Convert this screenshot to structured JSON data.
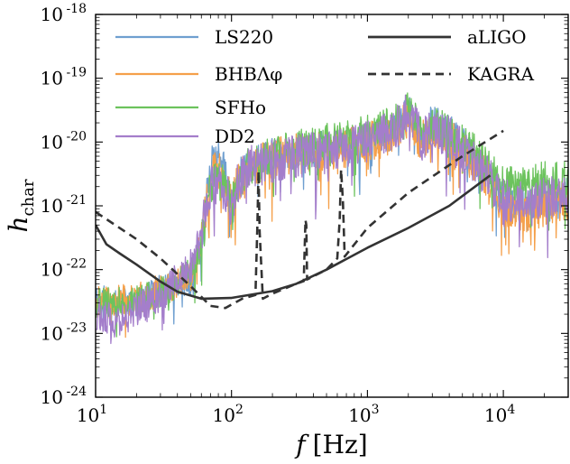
{
  "chart_data": {
    "type": "line",
    "xscale": "log",
    "yscale": "log",
    "xlim": [
      10,
      30000
    ],
    "ylim": [
      1e-24,
      1e-18
    ],
    "xlabel_main": "f",
    "xlabel_unit": "[Hz]",
    "ylabel_main": "h",
    "ylabel_sub": "char",
    "x_tick_labels": [
      {
        "value": 10,
        "base": "10",
        "exp": "1"
      },
      {
        "value": 100,
        "base": "10",
        "exp": "2"
      },
      {
        "value": 1000,
        "base": "10",
        "exp": "3"
      },
      {
        "value": 10000,
        "base": "10",
        "exp": "4"
      }
    ],
    "y_tick_labels": [
      {
        "value": 1e-24,
        "base": "10",
        "exp": "-24"
      },
      {
        "value": 1e-23,
        "base": "10",
        "exp": "-23"
      },
      {
        "value": 1e-22,
        "base": "10",
        "exp": "-22"
      },
      {
        "value": 1e-21,
        "base": "10",
        "exp": "-21"
      },
      {
        "value": 1e-20,
        "base": "10",
        "exp": "-20"
      },
      {
        "value": 1e-19,
        "base": "10",
        "exp": "-19"
      },
      {
        "value": 1e-18,
        "base": "10",
        "exp": "-18"
      }
    ],
    "legend_placement": "top",
    "series": [
      {
        "name": "LS220",
        "color": "#6f9fd0",
        "style": "solid",
        "noise_seed": 11,
        "noise_amp": 0.28,
        "points": [
          [
            10,
            3.5e-23
          ],
          [
            20,
            3e-23
          ],
          [
            30,
            5e-23
          ],
          [
            40,
            6e-23
          ],
          [
            50,
            7e-23
          ],
          [
            55,
            1.2e-22
          ],
          [
            60,
            2.5e-22
          ],
          [
            65,
            1.2e-21
          ],
          [
            70,
            4.5e-21
          ],
          [
            80,
            5.6e-21
          ],
          [
            90,
            3.5e-21
          ],
          [
            100,
            1e-21
          ],
          [
            110,
            2.5e-21
          ],
          [
            130,
            4.5e-21
          ],
          [
            160,
            5e-21
          ],
          [
            200,
            6e-21
          ],
          [
            300,
            7e-21
          ],
          [
            500,
            8e-21
          ],
          [
            800,
            9e-21
          ],
          [
            1200,
            1.2e-20
          ],
          [
            1600,
            1.5e-20
          ],
          [
            2000,
            3e-20
          ],
          [
            2500,
            1.2e-20
          ],
          [
            3000,
            2e-20
          ],
          [
            4000,
            1.5e-20
          ],
          [
            6000,
            6e-21
          ],
          [
            8000,
            3.2e-21
          ],
          [
            10000,
            1.3e-21
          ],
          [
            15000,
            1e-21
          ],
          [
            20000,
            1.2e-21
          ],
          [
            30000,
            1.5e-21
          ]
        ]
      },
      {
        "name": "BHBΛφ",
        "color": "#f5a04a",
        "style": "solid",
        "noise_seed": 23,
        "noise_amp": 0.32,
        "points": [
          [
            10,
            3e-23
          ],
          [
            20,
            3.5e-23
          ],
          [
            30,
            5e-23
          ],
          [
            40,
            6e-23
          ],
          [
            50,
            8e-23
          ],
          [
            55,
            1.5e-22
          ],
          [
            60,
            2.5e-22
          ],
          [
            65,
            1e-21
          ],
          [
            70,
            3e-21
          ],
          [
            80,
            3.5e-21
          ],
          [
            90,
            2.5e-21
          ],
          [
            100,
            1e-21
          ],
          [
            110,
            2.2e-21
          ],
          [
            130,
            4e-21
          ],
          [
            160,
            4.5e-21
          ],
          [
            200,
            5.5e-21
          ],
          [
            300,
            6.5e-21
          ],
          [
            500,
            7.5e-21
          ],
          [
            800,
            8.5e-21
          ],
          [
            1200,
            1.1e-20
          ],
          [
            1600,
            1.4e-20
          ],
          [
            2000,
            2.5e-20
          ],
          [
            2500,
            1e-20
          ],
          [
            3000,
            1.8e-20
          ],
          [
            4000,
            1.2e-20
          ],
          [
            6000,
            5e-21
          ],
          [
            8000,
            2.5e-21
          ],
          [
            10000,
            1e-21
          ],
          [
            15000,
            8e-22
          ],
          [
            20000,
            1e-21
          ],
          [
            30000,
            1.3e-21
          ]
        ]
      },
      {
        "name": "SFHo",
        "color": "#6cc35d",
        "style": "solid",
        "noise_seed": 37,
        "noise_amp": 0.3,
        "points": [
          [
            10,
            3e-23
          ],
          [
            20,
            3.2e-23
          ],
          [
            30,
            4.5e-23
          ],
          [
            40,
            6e-23
          ],
          [
            50,
            9e-23
          ],
          [
            55,
            1.4e-22
          ],
          [
            60,
            2.5e-22
          ],
          [
            65,
            8e-22
          ],
          [
            70,
            2.2e-21
          ],
          [
            80,
            2.5e-21
          ],
          [
            90,
            2.2e-21
          ],
          [
            100,
            1.1e-21
          ],
          [
            110,
            2.3e-21
          ],
          [
            130,
            4e-21
          ],
          [
            160,
            5e-21
          ],
          [
            200,
            6e-21
          ],
          [
            300,
            8e-21
          ],
          [
            500,
            1e-20
          ],
          [
            800,
            1.2e-20
          ],
          [
            1200,
            1.5e-20
          ],
          [
            1600,
            2e-20
          ],
          [
            2000,
            3.5e-20
          ],
          [
            2500,
            1.3e-20
          ],
          [
            3000,
            2e-20
          ],
          [
            4000,
            1.5e-20
          ],
          [
            6000,
            7e-21
          ],
          [
            8000,
            3.5e-21
          ],
          [
            10000,
            2e-21
          ],
          [
            15000,
            2.2e-21
          ],
          [
            20000,
            2.5e-21
          ],
          [
            30000,
            2.6e-21
          ]
        ]
      },
      {
        "name": "DD2",
        "color": "#a47ecb",
        "style": "solid",
        "noise_seed": 53,
        "noise_amp": 0.34,
        "points": [
          [
            10,
            2e-23
          ],
          [
            15,
            1.5e-23
          ],
          [
            20,
            2.5e-23
          ],
          [
            30,
            4e-23
          ],
          [
            40,
            7e-23
          ],
          [
            50,
            1.1e-22
          ],
          [
            55,
            2e-22
          ],
          [
            60,
            4e-22
          ],
          [
            65,
            1e-21
          ],
          [
            70,
            2e-21
          ],
          [
            80,
            2.2e-21
          ],
          [
            90,
            1.8e-21
          ],
          [
            100,
            1e-21
          ],
          [
            110,
            2.2e-21
          ],
          [
            130,
            4e-21
          ],
          [
            160,
            4.5e-21
          ],
          [
            200,
            5e-21
          ],
          [
            300,
            6e-21
          ],
          [
            500,
            7e-21
          ],
          [
            800,
            8.5e-21
          ],
          [
            1200,
            1.1e-20
          ],
          [
            1600,
            1.6e-20
          ],
          [
            2000,
            3e-20
          ],
          [
            2500,
            1.1e-20
          ],
          [
            3000,
            1.6e-20
          ],
          [
            4000,
            1.2e-20
          ],
          [
            6000,
            5e-21
          ],
          [
            8000,
            2.5e-21
          ],
          [
            10000,
            1.2e-21
          ],
          [
            15000,
            1.2e-21
          ],
          [
            20000,
            1.4e-21
          ],
          [
            30000,
            1.5e-21
          ]
        ]
      },
      {
        "name": "aLIGO",
        "color": "#333333",
        "style": "solid",
        "points": [
          [
            10,
            5e-22
          ],
          [
            12,
            2.5e-22
          ],
          [
            15,
            1.8e-22
          ],
          [
            20,
            1.2e-22
          ],
          [
            30,
            6.5e-23
          ],
          [
            40,
            4.5e-23
          ],
          [
            60,
            3.5e-23
          ],
          [
            100,
            3.6e-23
          ],
          [
            200,
            4.6e-23
          ],
          [
            300,
            6e-23
          ],
          [
            500,
            1e-22
          ],
          [
            1000,
            2.2e-22
          ],
          [
            2000,
            4.5e-22
          ],
          [
            4000,
            1e-21
          ],
          [
            8000,
            3e-21
          ]
        ]
      },
      {
        "name": "KAGRA",
        "color": "#333333",
        "style": "dashed",
        "points": [
          [
            10,
            8e-22
          ],
          [
            20,
            3e-22
          ],
          [
            30,
            1.5e-22
          ],
          [
            50,
            5.5e-23
          ],
          [
            70,
            2.7e-23
          ],
          [
            90,
            2.5e-23
          ],
          [
            120,
            3.5e-23
          ],
          [
            150,
            4e-23
          ],
          [
            155,
            5e-22
          ],
          [
            158,
            3.5e-21
          ],
          [
            161,
            4e-22
          ],
          [
            170,
            3.5e-23
          ],
          [
            200,
            4.2e-23
          ],
          [
            300,
            6e-23
          ],
          [
            340,
            6.6e-23
          ],
          [
            350,
            6e-22
          ],
          [
            355,
            5e-22
          ],
          [
            360,
            7e-23
          ],
          [
            500,
            1e-22
          ],
          [
            600,
            1.5e-22
          ],
          [
            625,
            6e-22
          ],
          [
            640,
            3.7e-21
          ],
          [
            660,
            1.2e-21
          ],
          [
            680,
            1.6e-22
          ],
          [
            1000,
            4.5e-22
          ],
          [
            2000,
            1.6e-21
          ],
          [
            5000,
            6e-21
          ],
          [
            10000,
            1.5e-20
          ]
        ]
      }
    ]
  }
}
